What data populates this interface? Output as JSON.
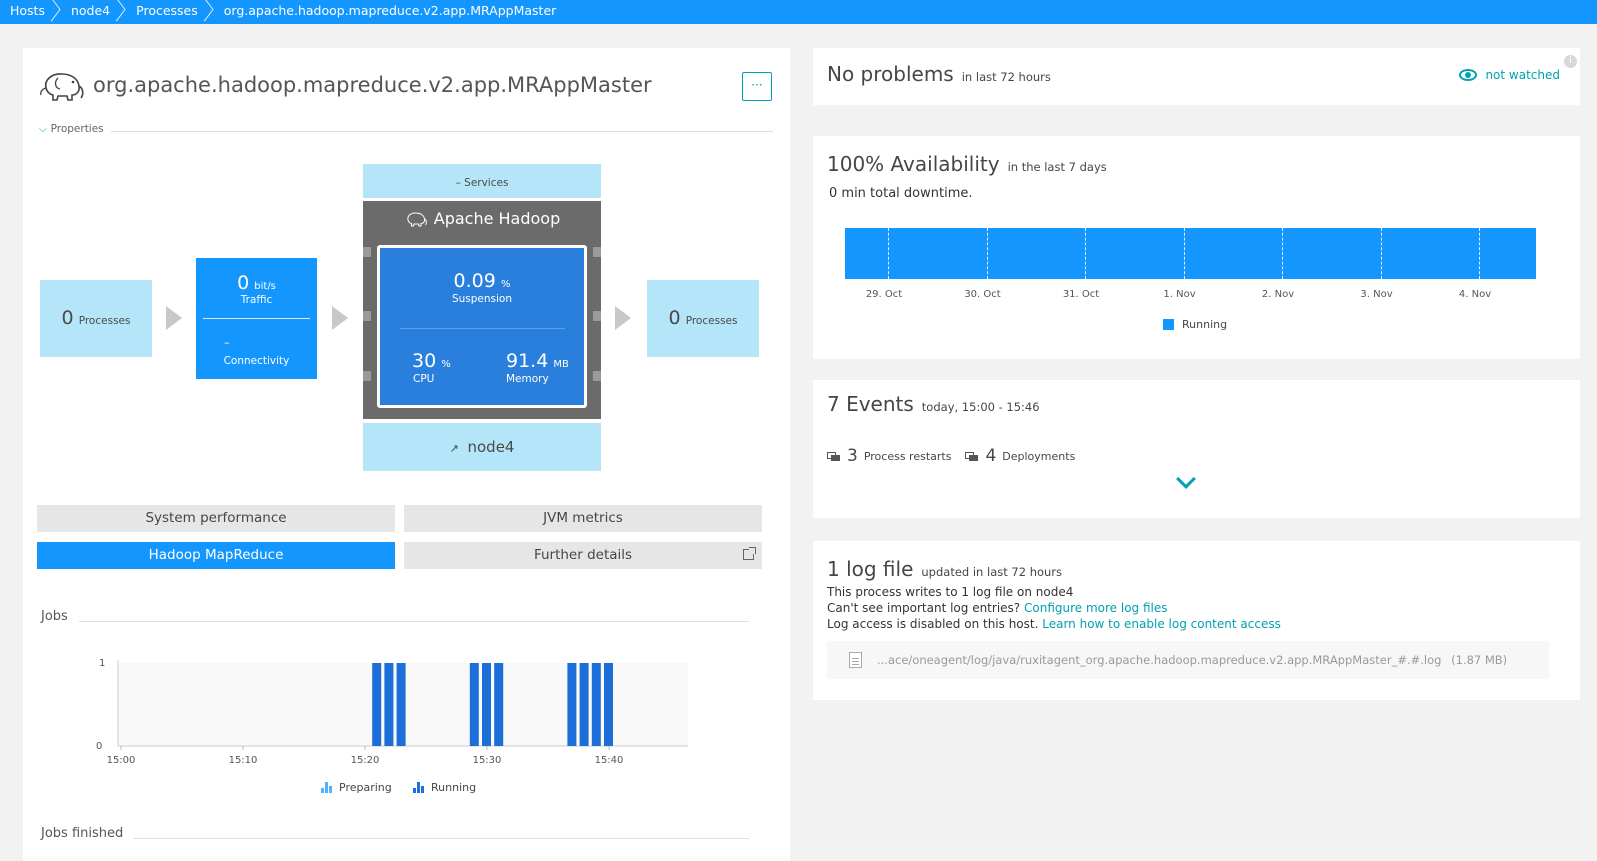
{
  "breadcrumbs": [
    "Hosts",
    "node4",
    "Processes",
    "org.apache.hadoop.mapreduce.v2.app.MRAppMaster"
  ],
  "process": {
    "title": "org.apache.hadoop.mapreduce.v2.app.MRAppMaster",
    "menu_label": "···",
    "properties_label": "Properties"
  },
  "smartscape": {
    "callers": {
      "count": "0",
      "label": "Processes"
    },
    "traffic": {
      "value": "0",
      "unit": "bit/s",
      "label": "Traffic"
    },
    "connectivity": {
      "value": "–",
      "label": "Connectivity"
    },
    "services_label": "Services",
    "services_prefix": "–",
    "technology": "Apache Hadoop",
    "suspension": {
      "value": "0.09",
      "unit": "%",
      "label": "Suspension"
    },
    "cpu": {
      "value": "30",
      "unit": "%",
      "label": "CPU"
    },
    "memory": {
      "value": "91.4",
      "unit": "MB",
      "label": "Memory"
    },
    "host": "node4",
    "callees": {
      "count": "0",
      "label": "Processes"
    }
  },
  "tabs": [
    {
      "label": "System performance",
      "active": false
    },
    {
      "label": "JVM metrics",
      "active": false
    },
    {
      "label": "Hadoop MapReduce",
      "active": true
    },
    {
      "label": "Further details",
      "active": false
    }
  ],
  "jobs_chart": {
    "section_label": "Jobs",
    "next_section_label": "Jobs finished",
    "chart_data": {
      "type": "bar",
      "x_tick_labels": [
        "15:00",
        "15:10",
        "15:20",
        "15:30",
        "15:40"
      ],
      "y_tick_labels": [
        "0",
        "1"
      ],
      "ylim": [
        0,
        1
      ],
      "xlim_minutes": [
        "15:00",
        "15:46"
      ],
      "series": [
        {
          "name": "Preparing",
          "color": "#4fb3ff",
          "values": []
        },
        {
          "name": "Running",
          "color": "#1c6fd8",
          "values": [
            {
              "time": "15:21",
              "value": 1
            },
            {
              "time": "15:22",
              "value": 1
            },
            {
              "time": "15:23",
              "value": 1
            },
            {
              "time": "15:29",
              "value": 1
            },
            {
              "time": "15:30",
              "value": 1
            },
            {
              "time": "15:31",
              "value": 1
            },
            {
              "time": "15:37",
              "value": 1
            },
            {
              "time": "15:38",
              "value": 1
            },
            {
              "time": "15:39",
              "value": 1
            },
            {
              "time": "15:40",
              "value": 1
            }
          ]
        }
      ]
    }
  },
  "problems": {
    "title": "No problems",
    "subtitle": "in last 72 hours",
    "watch_label": "not watched",
    "info_label": "i"
  },
  "availability": {
    "title": "100% Availability",
    "subtitle": "in the last 7 days",
    "downtime": "0 min total downtime.",
    "chart_data": {
      "type": "area",
      "categories": [
        "29. Oct",
        "30. Oct",
        "31. Oct",
        "1. Nov",
        "2. Nov",
        "3. Nov",
        "4. Nov"
      ],
      "series": [
        {
          "name": "Running",
          "color": "#1496ff",
          "values": [
            100,
            100,
            100,
            100,
            100,
            100,
            100
          ]
        }
      ]
    },
    "legend": "Running"
  },
  "events": {
    "title": "7 Events",
    "subtitle": "today, 15:00 - 15:46",
    "restarts": {
      "count": "3",
      "label": "Process restarts"
    },
    "deployments": {
      "count": "4",
      "label": "Deployments"
    }
  },
  "logs": {
    "title": "1 log file",
    "subtitle": "updated in last 72 hours",
    "line1": "This process writes to 1 log file on node4",
    "line2_text": "Can't see important log entries?",
    "line2_link": "Configure more log files",
    "line3_text": "Log access is disabled on this host.",
    "line3_link": "Learn how to enable log content access",
    "file_path": "...ace/oneagent/log/java/ruxitagent_org.apache.hadoop.mapreduce.v2.app.MRAppMaster_#.#.log",
    "file_size": "(1.87 MB)"
  }
}
